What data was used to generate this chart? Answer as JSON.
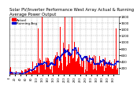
{
  "title": "Solar PV/Inverter Performance West Array Actual & Running Average Power Output",
  "legend_actual": "Actual",
  "legend_avg": "Running Avg",
  "ylim": [
    0,
    1800
  ],
  "background_color": "#ffffff",
  "plot_bg_color": "#ffffff",
  "grid_color": "#aaaaaa",
  "bar_color": "#ff0000",
  "avg_color": "#0000cc",
  "title_fontsize": 3.8,
  "tick_fontsize": 3.0,
  "label_fontsize": 3.0,
  "ytick_values": [
    200,
    400,
    600,
    800,
    1000,
    1200,
    1400,
    1600,
    1800
  ],
  "num_points": 400,
  "seed": 12
}
